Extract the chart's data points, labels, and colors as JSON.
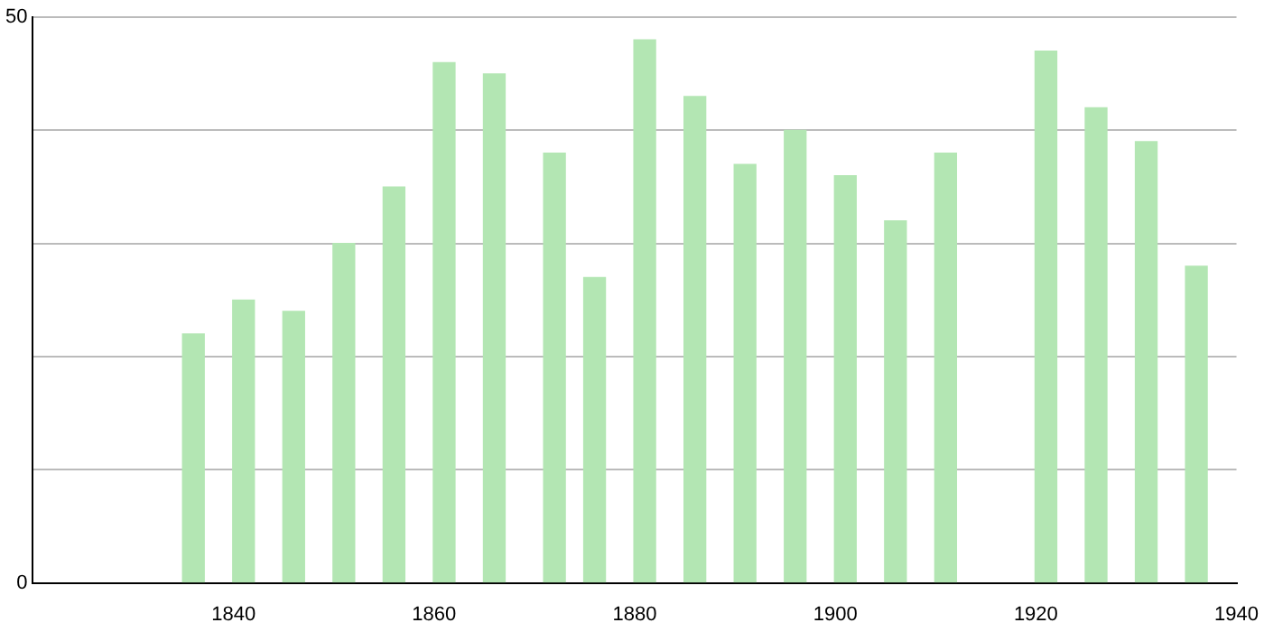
{
  "chart_data": {
    "type": "bar",
    "x": [
      1836,
      1841,
      1846,
      1851,
      1856,
      1861,
      1866,
      1872,
      1876,
      1881,
      1886,
      1891,
      1896,
      1901,
      1906,
      1911,
      1921,
      1926,
      1931,
      1936
    ],
    "values": [
      22,
      25,
      24,
      30,
      35,
      46,
      45,
      38,
      27,
      48,
      43,
      37,
      40,
      36,
      32,
      38,
      47,
      42,
      39,
      28
    ],
    "color": "#b3e6b3",
    "xlim": [
      1820,
      1940
    ],
    "xticks": [
      1840,
      1860,
      1880,
      1900,
      1920,
      1940
    ],
    "ylim": [
      0,
      50
    ],
    "yticks": [
      0,
      {
        "value": 10,
        "label": null
      },
      {
        "value": 20,
        "label": null
      },
      {
        "value": 30,
        "label": null
      },
      {
        "value": 40,
        "label": null
      },
      50
    ],
    "grid": "y",
    "legend": false
  }
}
